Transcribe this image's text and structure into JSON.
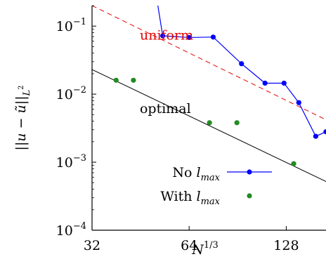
{
  "chart_data": {
    "type": "line",
    "xlabel": "N^{1/3}",
    "ylabel": "||u - ũ||_{L^2}",
    "x_scale": "log2",
    "y_scale": "log10",
    "xlim": [
      32,
      170
    ],
    "ylim": [
      0.0001,
      0.2
    ],
    "x_ticks": [
      {
        "value": 32,
        "label": "32"
      },
      {
        "value": 64,
        "label": "64"
      },
      {
        "value": 128,
        "label": "128"
      }
    ],
    "y_ticks": [
      {
        "value": 0.1,
        "base": "10",
        "exp": "−1"
      },
      {
        "value": 0.01,
        "base": "10",
        "exp": "−2"
      },
      {
        "value": 0.001,
        "base": "10",
        "exp": "−3"
      },
      {
        "value": 0.0001,
        "base": "10",
        "exp": "−4"
      }
    ],
    "grid": false,
    "legend_position": "bottom-right",
    "colors": {
      "no_lmax": "#0000ff",
      "with_lmax": "#228b22",
      "uniform": "#e60000",
      "optimal": "#000000"
    },
    "series": [
      {
        "name": "No l_max",
        "legend_prefix": "No ",
        "legend_symbol": "l",
        "legend_sub": "max",
        "style": "line-marker",
        "x": [
          50,
          53,
          64,
          76,
          93,
          110,
          126,
          140,
          158,
          170
        ],
        "y": [
          0.4,
          0.072,
          0.068,
          0.069,
          0.028,
          0.0145,
          0.0145,
          0.0075,
          0.0024,
          0.0028
        ]
      },
      {
        "name": "With l_max",
        "legend_prefix": "With ",
        "legend_symbol": "l",
        "legend_sub": "max",
        "style": "marker",
        "x": [
          38,
          43,
          74,
          90,
          135
        ],
        "y": [
          0.016,
          0.016,
          0.0038,
          0.0038,
          0.00095
        ]
      },
      {
        "name": "uniform",
        "style": "dashed",
        "x": [
          32,
          170
        ],
        "y": [
          0.2,
          0.0042
        ]
      },
      {
        "name": "optimal",
        "style": "solid",
        "x": [
          32,
          170
        ],
        "y": [
          0.023,
          0.00052
        ]
      }
    ],
    "annotations": [
      {
        "text": "uniform",
        "x": 45,
        "y": 0.063,
        "color": "#e60000"
      },
      {
        "text": "optimal",
        "x": 45,
        "y": 0.0053,
        "color": "#000000"
      }
    ]
  }
}
